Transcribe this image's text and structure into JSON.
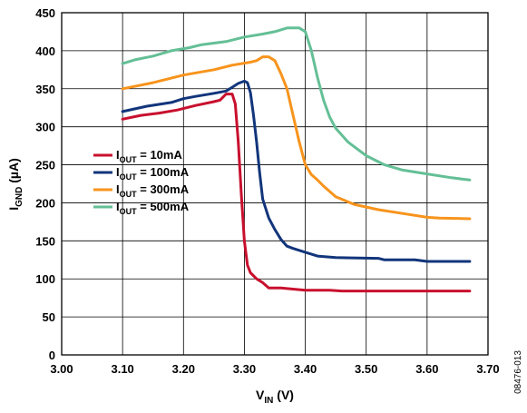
{
  "chart_data": {
    "type": "line",
    "xlabel": {
      "main": "V",
      "sub": "IN",
      "unit": " (V)"
    },
    "ylabel": {
      "main": "I",
      "sub": "GND",
      "unit": " (µA)"
    },
    "xlim": [
      3.0,
      3.7
    ],
    "ylim": [
      0,
      450
    ],
    "x_ticks": [
      "3.00",
      "3.10",
      "3.20",
      "3.30",
      "3.40",
      "3.50",
      "3.60",
      "3.70"
    ],
    "y_ticks": [
      "0",
      "50",
      "100",
      "150",
      "200",
      "250",
      "300",
      "350",
      "400",
      "450"
    ],
    "grid": true,
    "legend_position": "middle-left",
    "figure_id": "08476-013",
    "series": [
      {
        "name_main": "I",
        "name_sub": "OUT",
        "name_rest": " = 10mA",
        "color": "#c8102e",
        "points": [
          [
            3.1,
            310
          ],
          [
            3.13,
            315
          ],
          [
            3.16,
            318
          ],
          [
            3.19,
            322
          ],
          [
            3.22,
            328
          ],
          [
            3.25,
            333
          ],
          [
            3.26,
            335
          ],
          [
            3.27,
            343
          ],
          [
            3.28,
            343
          ],
          [
            3.285,
            330
          ],
          [
            3.29,
            280
          ],
          [
            3.295,
            210
          ],
          [
            3.3,
            150
          ],
          [
            3.305,
            118
          ],
          [
            3.31,
            108
          ],
          [
            3.32,
            100
          ],
          [
            3.33,
            95
          ],
          [
            3.34,
            88
          ],
          [
            3.36,
            88
          ],
          [
            3.4,
            85
          ],
          [
            3.44,
            85
          ],
          [
            3.46,
            84
          ],
          [
            3.55,
            84
          ],
          [
            3.67,
            84
          ]
        ]
      },
      {
        "name_main": "I",
        "name_sub": "OUT",
        "name_rest": " = 100mA",
        "color": "#12357b",
        "points": [
          [
            3.1,
            320
          ],
          [
            3.14,
            327
          ],
          [
            3.18,
            332
          ],
          [
            3.2,
            337
          ],
          [
            3.22,
            340
          ],
          [
            3.25,
            344
          ],
          [
            3.27,
            347
          ],
          [
            3.28,
            352
          ],
          [
            3.29,
            357
          ],
          [
            3.3,
            360
          ],
          [
            3.305,
            358
          ],
          [
            3.31,
            345
          ],
          [
            3.315,
            315
          ],
          [
            3.32,
            280
          ],
          [
            3.325,
            240
          ],
          [
            3.33,
            205
          ],
          [
            3.34,
            180
          ],
          [
            3.35,
            165
          ],
          [
            3.36,
            152
          ],
          [
            3.37,
            143
          ],
          [
            3.38,
            140
          ],
          [
            3.4,
            135
          ],
          [
            3.42,
            130
          ],
          [
            3.45,
            128
          ],
          [
            3.52,
            127
          ],
          [
            3.53,
            125
          ],
          [
            3.58,
            125
          ],
          [
            3.6,
            123
          ],
          [
            3.67,
            123
          ]
        ]
      },
      {
        "name_main": "I",
        "name_sub": "OUT",
        "name_rest": " = 300mA",
        "color": "#f7941d",
        "points": [
          [
            3.1,
            350
          ],
          [
            3.15,
            358
          ],
          [
            3.2,
            368
          ],
          [
            3.25,
            375
          ],
          [
            3.28,
            381
          ],
          [
            3.31,
            385
          ],
          [
            3.32,
            387
          ],
          [
            3.33,
            392
          ],
          [
            3.34,
            392
          ],
          [
            3.35,
            387
          ],
          [
            3.36,
            370
          ],
          [
            3.37,
            350
          ],
          [
            3.38,
            315
          ],
          [
            3.39,
            280
          ],
          [
            3.4,
            250
          ],
          [
            3.41,
            237
          ],
          [
            3.42,
            230
          ],
          [
            3.43,
            222
          ],
          [
            3.45,
            208
          ],
          [
            3.48,
            198
          ],
          [
            3.52,
            191
          ],
          [
            3.56,
            186
          ],
          [
            3.6,
            181
          ],
          [
            3.62,
            180
          ],
          [
            3.67,
            179
          ]
        ]
      },
      {
        "name_main": "I",
        "name_sub": "OUT",
        "name_rest": " = 500mA",
        "color": "#64bf96",
        "points": [
          [
            3.1,
            383
          ],
          [
            3.12,
            388
          ],
          [
            3.15,
            393
          ],
          [
            3.18,
            400
          ],
          [
            3.21,
            404
          ],
          [
            3.23,
            408
          ],
          [
            3.27,
            412
          ],
          [
            3.3,
            418
          ],
          [
            3.33,
            422
          ],
          [
            3.35,
            425
          ],
          [
            3.37,
            430
          ],
          [
            3.39,
            430
          ],
          [
            3.4,
            425
          ],
          [
            3.41,
            400
          ],
          [
            3.42,
            365
          ],
          [
            3.43,
            335
          ],
          [
            3.44,
            313
          ],
          [
            3.45,
            298
          ],
          [
            3.47,
            280
          ],
          [
            3.5,
            262
          ],
          [
            3.53,
            250
          ],
          [
            3.56,
            243
          ],
          [
            3.6,
            238
          ],
          [
            3.64,
            233
          ],
          [
            3.67,
            230
          ]
        ]
      }
    ]
  }
}
